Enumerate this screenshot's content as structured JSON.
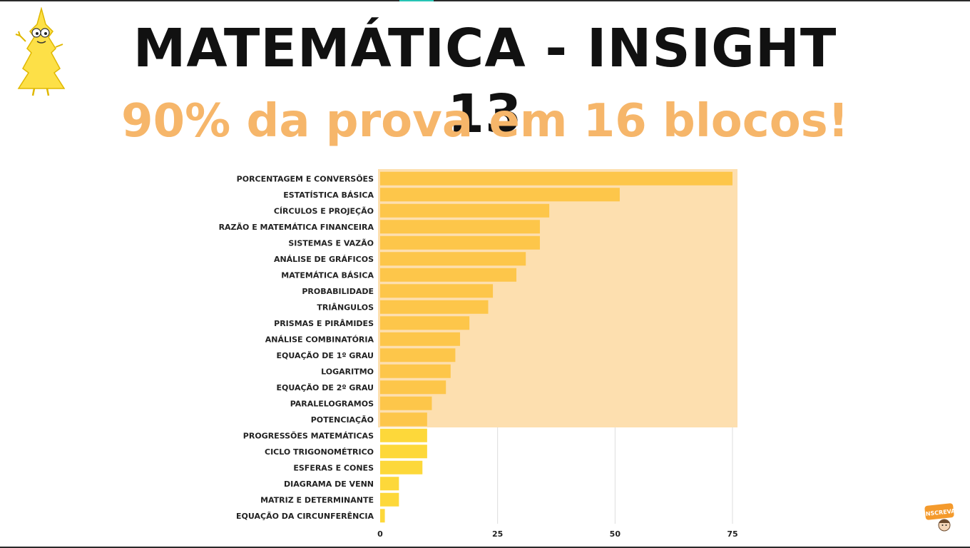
{
  "title": "MATEMÁTICA - INSIGHT 13",
  "subtitle": "90% da prova em 16 blocos!",
  "badge_text": "INSCREVA",
  "colors": {
    "title": "#111111",
    "subtitle": "#f6b66a",
    "bar_top": "#fdc64a",
    "bar_rest": "#fdd83a",
    "highlight": "#fddfaf",
    "grid": "#dddddd"
  },
  "chart_data": {
    "type": "bar",
    "orientation": "horizontal",
    "categories": [
      "PORCENTAGEM E CONVERSÕES",
      "ESTATÍSTICA BÁSICA",
      "CÍRCULOS E PROJEÇÃO",
      "RAZÃO E MATEMÁTICA FINANCEIRA",
      "SISTEMAS E VAZÃO",
      "ANÁLISE DE GRÁFICOS",
      "MATEMÁTICA BÁSICA",
      "PROBABILIDADE",
      "TRIÂNGULOS",
      "PRISMAS E PIRÂMIDES",
      "ANÁLISE COMBINATÓRIA",
      "EQUAÇÃO DE 1º GRAU",
      "LOGARITMO",
      "EQUAÇÃO DE 2º GRAU",
      "PARALELOGRAMOS",
      "POTENCIAÇÃO",
      "PROGRESSÕES MATEMÁTICAS",
      "CICLO TRIGONOMÉTRICO",
      "ESFERAS E CONES",
      "DIAGRAMA DE VENN",
      "MATRIZ E DETERMINANTE",
      "EQUAÇÃO DA CIRCUNFERÊNCIA"
    ],
    "values": [
      75,
      51,
      36,
      34,
      34,
      31,
      29,
      24,
      23,
      19,
      17,
      16,
      15,
      14,
      11,
      10,
      10,
      10,
      9,
      4,
      4,
      1
    ],
    "highlighted_count": 16,
    "xlim": [
      0,
      75
    ],
    "xticks": [
      0,
      25,
      50,
      75
    ],
    "grid": true,
    "xlabel": "",
    "ylabel": ""
  }
}
